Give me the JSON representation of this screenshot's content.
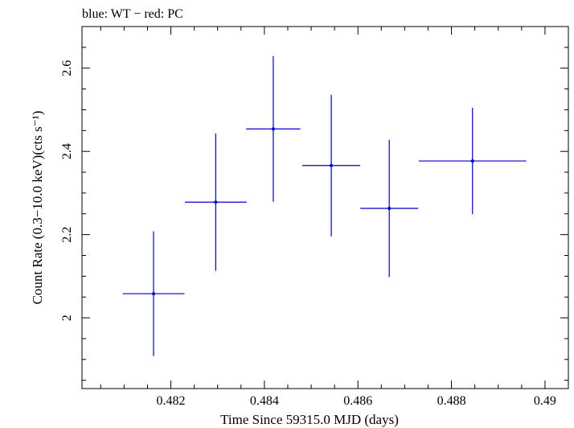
{
  "chart_data": {
    "type": "scatter",
    "title": "blue: WT − red: PC",
    "xlabel": "Time Since 59315.0 MJD (days)",
    "ylabel": "Count Rate (0.3−10.0 keV)(cts s⁻¹)",
    "xlim": [
      0.4801,
      0.4905
    ],
    "ylim": [
      1.83,
      2.7
    ],
    "x_ticks": [
      0.482,
      0.484,
      0.486,
      0.488,
      0.49
    ],
    "x_tick_labels": [
      "0.482",
      "0.484",
      "0.486",
      "0.488",
      "0.49"
    ],
    "y_ticks": [
      2.0,
      2.2,
      2.4,
      2.6
    ],
    "y_tick_labels": [
      "2",
      "2.2",
      "2.4",
      "2.6"
    ],
    "grid": false,
    "series": [
      {
        "color": "#0000cc",
        "points": [
          {
            "x": 0.48163,
            "xerr": 0.00066,
            "y": 2.058,
            "yerr": 0.15
          },
          {
            "x": 0.48296,
            "xerr": 0.00066,
            "y": 2.278,
            "yerr": 0.165
          },
          {
            "x": 0.48419,
            "xerr": 0.00058,
            "y": 2.454,
            "yerr": 0.175
          },
          {
            "x": 0.48543,
            "xerr": 0.00062,
            "y": 2.366,
            "yerr": 0.17
          },
          {
            "x": 0.48667,
            "xerr": 0.00062,
            "y": 2.263,
            "yerr": 0.165
          },
          {
            "x": 0.48845,
            "xerr": 0.00115,
            "y": 2.377,
            "yerr": 0.128
          }
        ]
      }
    ]
  }
}
